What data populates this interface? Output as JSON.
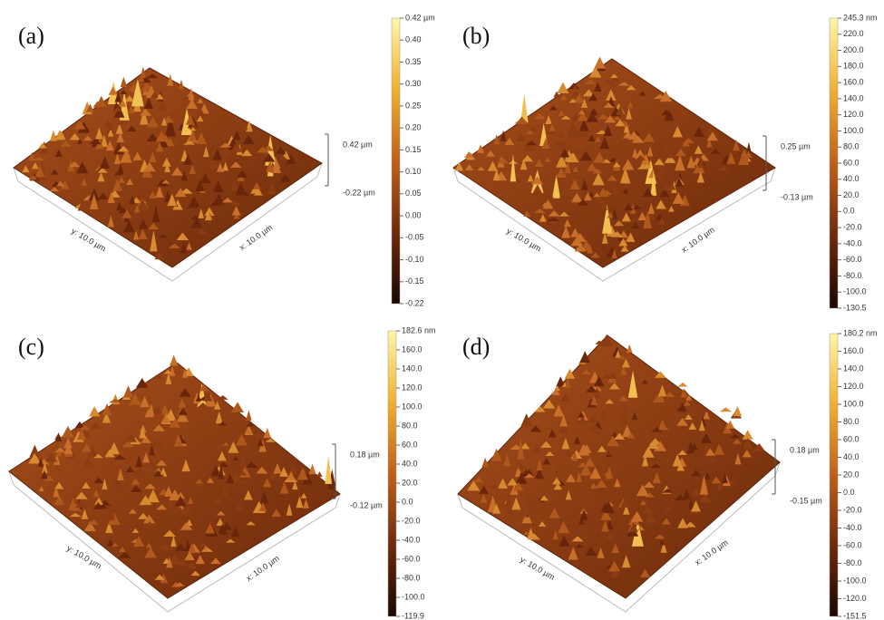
{
  "panels": [
    {
      "label": "(a)",
      "x_axis": "x: 10.0 µm",
      "y_axis": "y: 10.0 µm",
      "z_range": [
        "0.42 µm",
        "-0.22 µm"
      ],
      "colorbar_ticks": [
        "0.42 µm",
        "0.40",
        "0.35",
        "0.30",
        "0.25",
        "0.20",
        "0.15",
        "0.10",
        "0.05",
        "0.00",
        "-0.05",
        "-0.10",
        "-0.15",
        "-0.22"
      ]
    },
    {
      "label": "(b)",
      "x_axis": "x: 10.0 µm",
      "y_axis": "y: 10.0 µm",
      "z_range": [
        "0.25 µm",
        "-0.13 µm"
      ],
      "colorbar_ticks": [
        "245.3 nm",
        "220.0",
        "200.0",
        "180.0",
        "160.0",
        "140.0",
        "120.0",
        "100.0",
        "80.0",
        "60.0",
        "40.0",
        "20.0",
        "0.0",
        "-20.0",
        "-40.0",
        "-60.0",
        "-80.0",
        "-100.0",
        "-130.5"
      ]
    },
    {
      "label": "(c)",
      "x_axis": "x: 10.0 µm",
      "y_axis": "y: 10.0 µm",
      "z_range": [
        "0.18 µm",
        "-0.12 µm"
      ],
      "colorbar_ticks": [
        "182.6 nm",
        "160.0",
        "140.0",
        "120.0",
        "100.0",
        "80.0",
        "60.0",
        "40.0",
        "20.0",
        "0.0",
        "-20.0",
        "-40.0",
        "-60.0",
        "-80.0",
        "-100.0",
        "-119.9"
      ]
    },
    {
      "label": "(d)",
      "x_axis": "x: 10.0 µm",
      "y_axis": "y: 10.0 µm",
      "z_range": [
        "0.18 µm",
        "-0.15 µm"
      ],
      "colorbar_ticks": [
        "180.2 nm",
        "160.0",
        "140.0",
        "120.0",
        "100.0",
        "80.0",
        "60.0",
        "40.0",
        "20.0",
        "0.0",
        "-20.0",
        "-40.0",
        "-60.0",
        "-80.0",
        "-100.0",
        "-120.0",
        "-151.5"
      ]
    }
  ]
}
